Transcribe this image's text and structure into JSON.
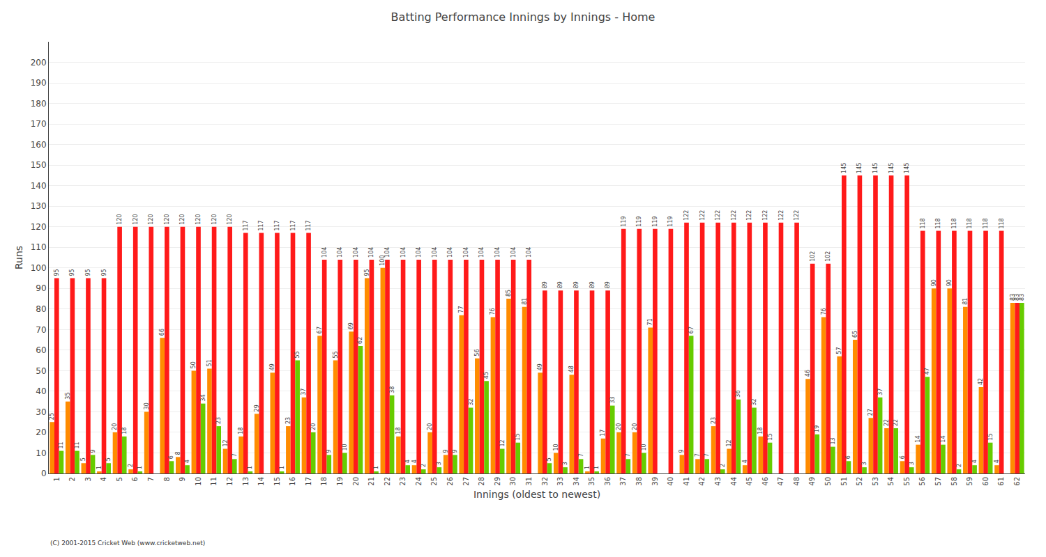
{
  "chart_data": {
    "type": "bar",
    "title": "Batting Performance Innings by Innings - Home",
    "xlabel": "Innings (oldest to newest)",
    "ylabel": "Runs",
    "annotations": [
      "(C) 2001-2015 Cricket Web (www.cricketweb.net)"
    ],
    "categories": [
      "1",
      "2",
      "3",
      "4",
      "5",
      "6",
      "7",
      "8",
      "9",
      "10",
      "11",
      "12",
      "13",
      "14",
      "15",
      "16",
      "17",
      "18",
      "19",
      "20",
      "21",
      "22",
      "23",
      "24",
      "25",
      "26",
      "27",
      "28",
      "29",
      "30",
      "31",
      "32",
      "33",
      "34",
      "35",
      "36",
      "37",
      "38",
      "39",
      "40",
      "41",
      "42",
      "43",
      "44",
      "45",
      "46",
      "47",
      "48",
      "49",
      "50",
      "51",
      "52",
      "53",
      "54",
      "55",
      "56",
      "57",
      "58",
      "59",
      "60",
      "61",
      "62"
    ],
    "series": [
      {
        "color": "#ff8c00",
        "values": [
          25,
          35,
          5,
          1,
          20,
          2,
          30,
          66,
          8,
          50,
          51,
          12,
          18,
          29,
          49,
          23,
          37,
          67,
          55,
          69,
          95,
          100,
          18,
          4,
          20,
          9,
          77,
          56,
          76,
          85,
          81,
          49,
          10,
          48,
          1,
          17,
          20,
          20,
          71,
          0,
          9,
          7,
          23,
          12,
          4,
          18,
          0,
          0,
          46,
          76,
          57,
          65,
          27,
          22,
          6,
          14,
          90,
          90,
          81,
          42,
          4,
          83
        ],
        "value_labels": [
          "25",
          "35",
          "5",
          "1",
          "20",
          "2",
          "30",
          "66",
          "8",
          "50",
          "51",
          "12",
          "18",
          "29",
          "49",
          "23",
          "37",
          "67",
          "55",
          "69",
          "95",
          "100",
          "18",
          "4",
          "20",
          "9",
          "77",
          "56",
          "76",
          "85",
          "81",
          "49",
          "10",
          "48",
          "1",
          "17",
          "20",
          "20",
          "71",
          null,
          "9",
          "7",
          "23",
          "12",
          "4",
          "18",
          null,
          null,
          "46",
          "76",
          "57",
          "65",
          "27",
          "22",
          "6",
          "14",
          "90",
          "90",
          "81",
          "42",
          "4",
          "83"
        ]
      },
      {
        "color": "#ff1a1a",
        "values": [
          95,
          95,
          95,
          95,
          120,
          120,
          120,
          120,
          120,
          120,
          120,
          120,
          117,
          117,
          117,
          117,
          117,
          104,
          104,
          104,
          104,
          104,
          104,
          104,
          104,
          104,
          104,
          104,
          104,
          104,
          104,
          89,
          89,
          89,
          89,
          89,
          119,
          119,
          119,
          119,
          122,
          122,
          122,
          122,
          122,
          122,
          122,
          122,
          102,
          102,
          145,
          145,
          145,
          145,
          145,
          118,
          118,
          118,
          118,
          118,
          118,
          83
        ],
        "value_labels": [
          "95",
          "95",
          "95",
          "95",
          "120",
          "120",
          "120",
          "120",
          "120",
          "120",
          "120",
          "120",
          "117",
          "117",
          "117",
          "117",
          "117",
          "104",
          "104",
          "104",
          "104",
          "104",
          "104",
          "104",
          "104",
          "104",
          "104",
          "104",
          "104",
          "104",
          "104",
          "89",
          "89",
          "89",
          "89",
          "89",
          "119",
          "119",
          "119",
          "119",
          "122",
          "122",
          "122",
          "122",
          "122",
          "122",
          "122",
          "122",
          "102",
          "102",
          "145",
          "145",
          "145",
          "145",
          "145",
          "118",
          "118",
          "118",
          "118",
          "118",
          "118",
          "83"
        ]
      },
      {
        "color": "#66cc00",
        "values": [
          11,
          11,
          9,
          5,
          18,
          1,
          0,
          6,
          4,
          34,
          23,
          7,
          1,
          0,
          1,
          55,
          20,
          9,
          10,
          62,
          1,
          38,
          4,
          2,
          3,
          9,
          32,
          45,
          12,
          15,
          0,
          5,
          3,
          7,
          1,
          33,
          7,
          10,
          0,
          0,
          67,
          7,
          2,
          36,
          32,
          15,
          0,
          0,
          19,
          13,
          6,
          3,
          37,
          22,
          3,
          47,
          14,
          2,
          4,
          15,
          0,
          83
        ],
        "value_labels": [
          "11",
          "11",
          "9",
          "5",
          "18",
          "1",
          null,
          "6",
          "4",
          "34",
          "23",
          "7",
          "1",
          null,
          "1",
          "55",
          "20",
          "9",
          "10",
          "62",
          "1",
          "38",
          "4",
          "2",
          "3",
          "9",
          "32",
          "45",
          "12",
          "15",
          null,
          "5",
          "3",
          "7",
          "1",
          "33",
          "7",
          "10",
          null,
          null,
          "67",
          "7",
          "2",
          "36",
          "32",
          "15",
          null,
          null,
          "19",
          "13",
          "6",
          "3",
          "37",
          "22",
          "3",
          "47",
          "14",
          "2",
          "4",
          "15",
          null,
          "83"
        ]
      }
    ],
    "ylim": [
      0,
      210
    ],
    "yticks": [
      0,
      10,
      20,
      30,
      40,
      50,
      60,
      70,
      80,
      90,
      100,
      110,
      120,
      130,
      140,
      150,
      160,
      170,
      180,
      190,
      200
    ],
    "grid": true,
    "data_labels": true
  }
}
